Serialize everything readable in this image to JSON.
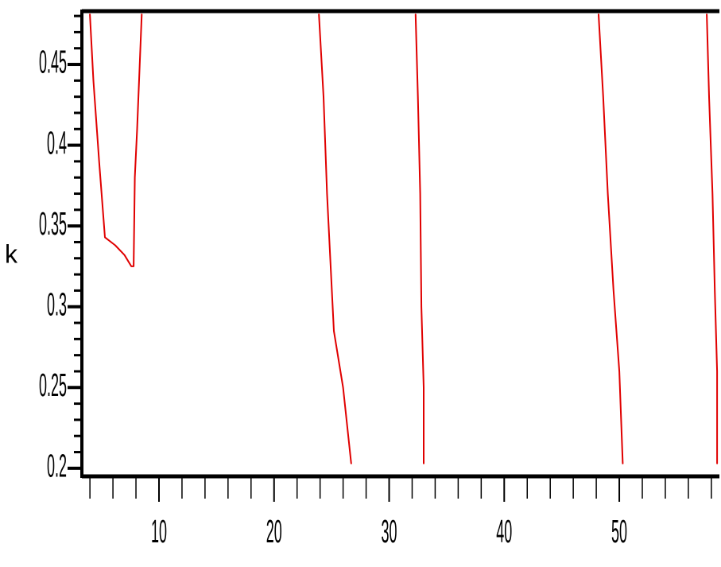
{
  "chart_data": {
    "type": "line",
    "xlabel": "",
    "ylabel": "k",
    "xlim": [
      3.3,
      58.7
    ],
    "ylim": [
      0.195,
      0.483
    ],
    "grid": false,
    "legend": "none",
    "x_ticks": [
      10,
      20,
      30,
      40,
      50
    ],
    "x_tick_labels": [
      "10",
      "20",
      "30",
      "40",
      "50"
    ],
    "y_ticks": [
      0.2,
      0.25,
      0.3,
      0.35,
      0.4,
      0.45
    ],
    "y_tick_labels": [
      "0.2",
      "0.25",
      "0.3",
      "0.35",
      "0.4",
      "0.45"
    ],
    "series": [
      {
        "color": "#e00000",
        "points": [
          [
            4.0,
            0.481
          ],
          [
            4.3,
            0.44
          ],
          [
            4.8,
            0.39
          ],
          [
            5.3,
            0.343
          ],
          [
            6.2,
            0.338
          ],
          [
            7.0,
            0.332
          ],
          [
            7.6,
            0.325
          ],
          [
            7.8,
            0.325
          ],
          [
            7.9,
            0.38
          ],
          [
            8.1,
            0.41
          ],
          [
            8.5,
            0.481
          ]
        ]
      },
      {
        "color": "#e00000",
        "points": [
          [
            23.9,
            0.481
          ],
          [
            24.3,
            0.43
          ],
          [
            24.6,
            0.37
          ],
          [
            25.2,
            0.285
          ],
          [
            26.0,
            0.25
          ],
          [
            26.7,
            0.203
          ]
        ]
      },
      {
        "color": "#e00000",
        "points": [
          [
            32.3,
            0.481
          ],
          [
            32.5,
            0.43
          ],
          [
            32.7,
            0.37
          ],
          [
            32.8,
            0.3
          ],
          [
            33.0,
            0.25
          ],
          [
            33.0,
            0.203
          ]
        ]
      },
      {
        "color": "#e00000",
        "points": [
          [
            48.2,
            0.481
          ],
          [
            48.6,
            0.43
          ],
          [
            49.0,
            0.37
          ],
          [
            49.5,
            0.31
          ],
          [
            50.0,
            0.26
          ],
          [
            50.3,
            0.203
          ]
        ]
      },
      {
        "color": "#e00000",
        "points": [
          [
            57.6,
            0.481
          ],
          [
            57.8,
            0.43
          ],
          [
            58.1,
            0.37
          ],
          [
            58.3,
            0.31
          ],
          [
            58.5,
            0.26
          ],
          [
            58.5,
            0.203
          ]
        ]
      }
    ]
  }
}
